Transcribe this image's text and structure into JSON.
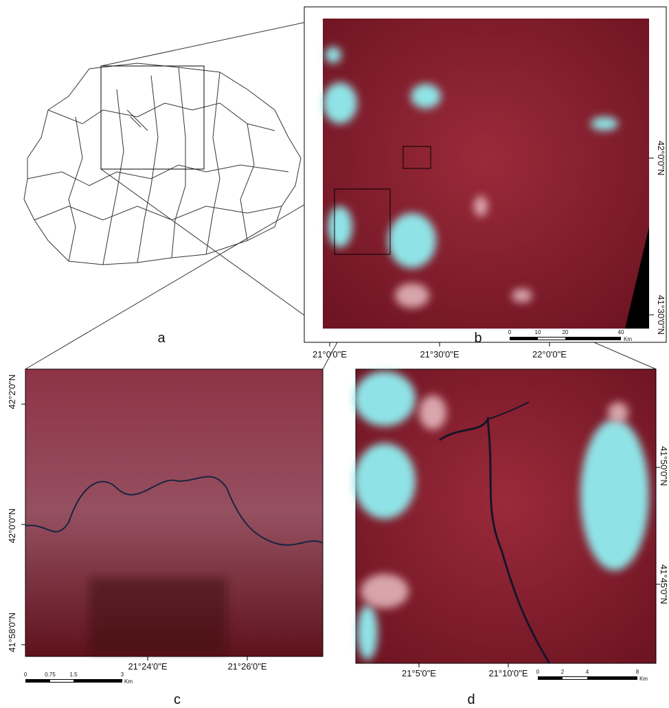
{
  "panels": {
    "a": {
      "label": "a"
    },
    "b": {
      "label": "b",
      "lat_labels": [
        "42°0'0\"N",
        "41°30'0\"N"
      ],
      "lon_labels": [
        "21°0'0\"E",
        "21°30'0\"E",
        "22°0'0\"E"
      ],
      "scale_bar": {
        "ticks": [
          "0",
          "10",
          "20",
          "40"
        ],
        "unit": "Km"
      }
    },
    "c": {
      "label": "c",
      "lat_labels": [
        "42°2'0\"N",
        "42°0'0\"N",
        "41°58'0\"N"
      ],
      "lon_labels": [
        "21°24'0\"E",
        "21°26'0\"E"
      ],
      "scale_bar": {
        "ticks": [
          "0",
          "0.75",
          "1.5",
          "3"
        ],
        "unit": "Km"
      }
    },
    "d": {
      "label": "d",
      "lat_labels": [
        "41°50'0\"N",
        "41°45'0\"N"
      ],
      "lon_labels": [
        "21°5'0\"E",
        "21°10'0\"E"
      ],
      "scale_bar": {
        "ticks": [
          "0",
          "2",
          "4",
          "8"
        ],
        "unit": "Km"
      }
    }
  }
}
